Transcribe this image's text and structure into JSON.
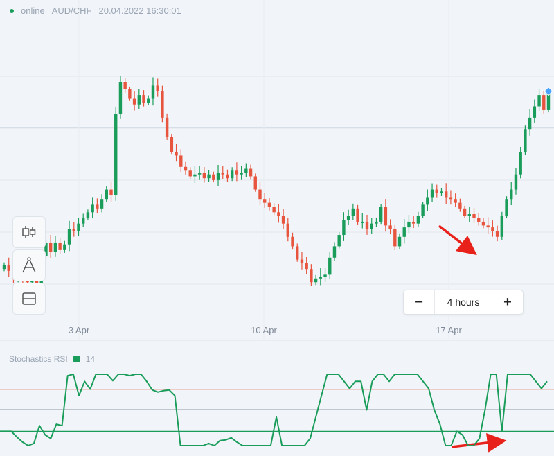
{
  "header": {
    "status": "online",
    "pair": "AUD/CHF",
    "datetime": "20.04.2022 16:30:01"
  },
  "zoom": {
    "minus": "−",
    "plus": "+",
    "interval": "4 hours"
  },
  "indicator": {
    "name": "Stochastics RSI",
    "period": "14"
  },
  "icons": [
    "candlestick-icon",
    "drawing-tools-icon",
    "layout-panel-icon"
  ],
  "colors": {
    "up": "#1a9d5a",
    "down": "#e8553e",
    "background": "#f1f4f8",
    "rsi_line": "#1a9d5a",
    "upper_band": "#e8553e",
    "lower_band": "#1a9d5a",
    "arrow": "#e8221b"
  },
  "chart_data": [
    {
      "type": "candlestick",
      "title": "AUD/CHF",
      "x_tick_labels": [
        "3 Apr",
        "10 Apr",
        "17 Apr"
      ],
      "interval": "4 hours",
      "price_series": [
        40,
        37,
        33,
        35,
        32,
        31,
        34,
        30,
        45,
        52,
        47,
        52,
        48,
        51,
        59,
        58,
        62,
        65,
        68,
        72,
        70,
        75,
        80,
        77,
        120,
        137,
        133,
        128,
        125,
        130,
        126,
        128,
        135,
        132,
        118,
        108,
        100,
        98,
        92,
        90,
        87,
        88,
        89,
        86,
        88,
        85,
        89,
        88,
        86,
        90,
        88,
        89,
        91,
        87,
        80,
        75,
        73,
        71,
        68,
        66,
        62,
        55,
        50,
        43,
        41,
        38,
        31,
        33,
        34,
        35,
        44,
        50,
        56,
        64,
        66,
        70,
        63,
        63,
        59,
        62,
        63,
        71,
        61,
        59,
        50,
        55,
        60,
        63,
        62,
        66,
        72,
        76,
        80,
        78,
        79,
        76,
        75,
        73,
        70,
        66,
        67,
        65,
        63,
        61,
        60,
        58,
        55,
        66,
        75,
        80,
        88,
        100,
        112,
        118,
        124,
        130,
        122,
        132
      ],
      "series": [
        {
          "name": "Stochastics RSI",
          "ylim": [
            0,
            100
          ],
          "upper_band": 80,
          "lower_band": 20,
          "values": [
            20,
            20,
            20,
            12,
            5,
            0,
            3,
            28,
            15,
            10,
            30,
            28,
            98,
            100,
            70,
            90,
            79,
            100,
            100,
            100,
            91,
            100,
            100,
            98,
            100,
            100,
            90,
            78,
            75,
            77,
            78,
            70,
            0,
            0,
            0,
            0,
            0,
            3,
            0,
            7,
            8,
            11,
            5,
            0,
            0,
            0,
            0,
            0,
            0,
            40,
            0,
            0,
            0,
            0,
            0,
            10,
            40,
            70,
            100,
            100,
            100,
            90,
            80,
            90,
            90,
            50,
            90,
            100,
            100,
            90,
            100,
            100,
            100,
            100,
            100,
            90,
            80,
            50,
            30,
            0,
            0,
            20,
            15,
            0,
            0,
            10,
            50,
            100,
            100,
            20,
            100,
            100,
            100,
            100,
            100,
            90,
            80,
            90
          ]
        }
      ]
    }
  ]
}
